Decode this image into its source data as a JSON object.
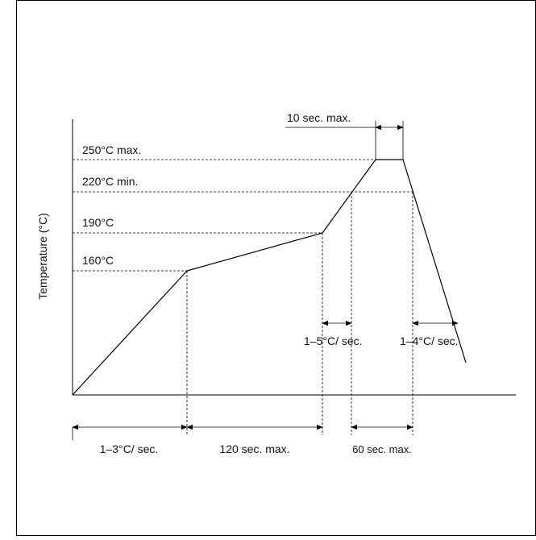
{
  "diagram": {
    "y_axis_label": "Temperature (°C)",
    "temperature_levels": {
      "t250": "250°C max.",
      "t220": "220°C min.",
      "t190": "190°C",
      "t160": "160°C"
    },
    "annotations": {
      "peak_time": "10 sec. max.",
      "heat_rate_top": "1–5°C/ sec.",
      "cool_rate": "1–4°C/ sec."
    },
    "bottom_intervals": {
      "ramp": "1–3°C/ sec.",
      "preheat": "120 sec. max.",
      "above_220": "60 sec. max."
    }
  },
  "colors": {
    "line": "#000000",
    "text": "#111111"
  }
}
